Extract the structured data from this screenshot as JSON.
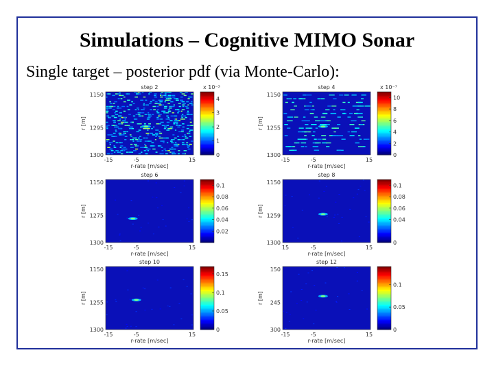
{
  "slide": {
    "title": "Simulations – Cognitive MIMO Sonar",
    "subtitle": "Single target – posterior pdf (via Monte-Carlo):"
  },
  "chart_data": [
    {
      "type": "heatmap",
      "title": "step 2",
      "xlabel": "r-rate [m/sec]",
      "ylabel": "r [m]",
      "x_ticks": [
        "-15",
        "-5",
        "15"
      ],
      "y_ticks": [
        "1150",
        "1295",
        "1300"
      ],
      "colorbar_exponent": "x 10⁻³",
      "colorbar_ticks": [
        "4",
        "3",
        "2",
        "1",
        "0"
      ],
      "colorbar_range": [
        0,
        4.5
      ],
      "pattern": "noisy",
      "target": [
        0.46,
        0.55
      ],
      "peak": 0.7
    },
    {
      "type": "heatmap",
      "title": "step 4",
      "xlabel": "r-rate [m/sec]",
      "ylabel": "r [m]",
      "x_ticks": [
        "-15",
        "-5",
        "15"
      ],
      "y_ticks": [
        "1150",
        "1255",
        "1300"
      ],
      "colorbar_exponent": "x 10⁻⁷",
      "colorbar_ticks": [
        "10",
        "8",
        "6",
        "4",
        "2",
        "0"
      ],
      "colorbar_range": [
        0,
        11
      ],
      "pattern": "bands",
      "target": [
        0.46,
        0.55
      ],
      "peak": 0.9
    },
    {
      "type": "heatmap",
      "title": "step 6",
      "xlabel": "r-rate [m/sec]",
      "ylabel": "r [m]",
      "x_ticks": [
        "-15",
        "-5",
        "15"
      ],
      "y_ticks": [
        "1150",
        "1275",
        "1300"
      ],
      "colorbar_ticks": [
        "0.1",
        "0.08",
        "0.06",
        "0.04",
        "0.02"
      ],
      "colorbar_range": [
        0,
        0.11
      ],
      "pattern": "target",
      "target": [
        0.31,
        0.62
      ],
      "peak": 1.0
    },
    {
      "type": "heatmap",
      "title": "step 8",
      "xlabel": "r-rate [m/sec]",
      "ylabel": "r [m]",
      "x_ticks": [
        "15",
        "-5",
        "15"
      ],
      "y_ticks": [
        "1150",
        "1259",
        "1300"
      ],
      "colorbar_ticks": [
        "0.1",
        "0.08",
        "0.06",
        "0.04",
        "0"
      ],
      "colorbar_range": [
        0,
        0.11
      ],
      "pattern": "target",
      "target": [
        0.46,
        0.55
      ],
      "peak": 1.0
    },
    {
      "type": "heatmap",
      "title": "step 10",
      "xlabel": "r-rate [m/sec]",
      "ylabel": "r [m]",
      "x_ticks": [
        "-15",
        "-5",
        "15"
      ],
      "y_ticks": [
        "1150",
        "1255",
        "1300"
      ],
      "colorbar_ticks": [
        "0.15",
        "0.1",
        "0.05",
        "0"
      ],
      "colorbar_range": [
        0,
        0.17
      ],
      "pattern": "target",
      "target": [
        0.35,
        0.53
      ],
      "peak": 1.0
    },
    {
      "type": "heatmap",
      "title": "step 12",
      "xlabel": "r-rate [m/sec]",
      "ylabel": "r [m]",
      "x_ticks": [
        "-15",
        "-5",
        "15"
      ],
      "y_ticks": [
        "150",
        "245",
        "300"
      ],
      "colorbar_ticks": [
        "0.1",
        "0.05",
        "0"
      ],
      "colorbar_range": [
        0,
        0.14
      ],
      "pattern": "target",
      "target": [
        0.46,
        0.47
      ],
      "peak": 1.0
    }
  ]
}
